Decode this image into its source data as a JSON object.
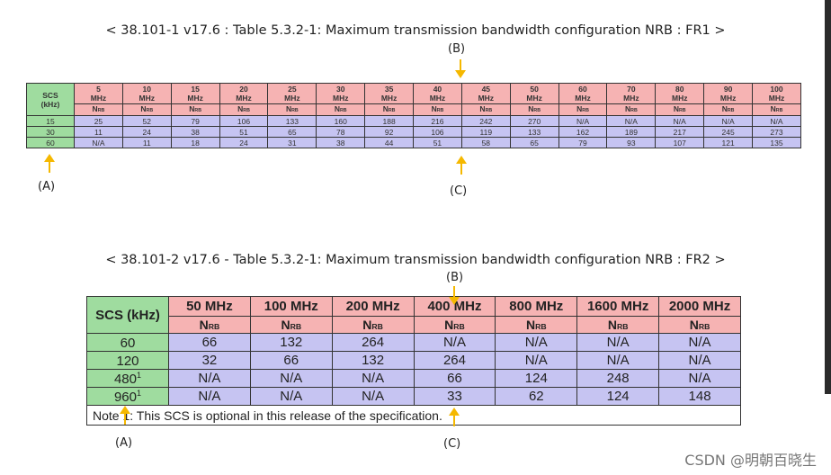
{
  "fr1": {
    "caption": "< 38.101-1 v17.6 : Table 5.3.2-1: Maximum transmission bandwidth configuration NRB : FR1 >",
    "scs_header": [
      "SCS",
      "(kHz)"
    ],
    "bandwidths": [
      "5",
      "10",
      "15",
      "20",
      "25",
      "30",
      "35",
      "40",
      "45",
      "50",
      "60",
      "70",
      "80",
      "90",
      "100"
    ],
    "mhz_label": "MHz",
    "nrb_label": {
      "n": "N",
      "rb": "RB"
    },
    "rows": [
      {
        "scs": "15",
        "values": [
          "25",
          "52",
          "79",
          "106",
          "133",
          "160",
          "188",
          "216",
          "242",
          "270",
          "N/A",
          "N/A",
          "N/A",
          "N/A",
          "N/A"
        ]
      },
      {
        "scs": "30",
        "values": [
          "11",
          "24",
          "38",
          "51",
          "65",
          "78",
          "92",
          "106",
          "119",
          "133",
          "162",
          "189",
          "217",
          "245",
          "273"
        ]
      },
      {
        "scs": "60",
        "values": [
          "N/A",
          "11",
          "18",
          "24",
          "31",
          "38",
          "44",
          "51",
          "58",
          "65",
          "79",
          "93",
          "107",
          "121",
          "135"
        ]
      }
    ],
    "markers": {
      "a": "(A)",
      "b": "(B)",
      "c": "(C)"
    }
  },
  "fr2": {
    "caption": "< 38.101-2 v17.6 - Table 5.3.2-1: Maximum transmission bandwidth configuration NRB : FR2 >",
    "scs_header": "SCS (kHz)",
    "bandwidths": [
      "50 MHz",
      "100 MHz",
      "200 MHz",
      "400 MHz",
      "800 MHz",
      "1600 MHz",
      "2000 MHz"
    ],
    "nrb_label": {
      "n": "N",
      "rb": "RB"
    },
    "rows": [
      {
        "scs": "60",
        "sup": "",
        "values": [
          "66",
          "132",
          "264",
          "N/A",
          "N/A",
          "N/A",
          "N/A"
        ]
      },
      {
        "scs": "120",
        "sup": "",
        "values": [
          "32",
          "66",
          "132",
          "264",
          "N/A",
          "N/A",
          "N/A"
        ]
      },
      {
        "scs": "480",
        "sup": "1",
        "values": [
          "N/A",
          "N/A",
          "N/A",
          "66",
          "124",
          "248",
          "N/A"
        ]
      },
      {
        "scs": "960",
        "sup": "1",
        "values": [
          "N/A",
          "N/A",
          "N/A",
          "33",
          "62",
          "124",
          "148"
        ]
      }
    ],
    "note": "Note 1: This SCS is optional in this release of the specification.",
    "markers": {
      "a": "(A)",
      "b": "(B)",
      "c": "(C)"
    }
  },
  "watermark": "CSDN @明朝百晓生",
  "colors": {
    "scs_green": "#9fdc9f",
    "header_pink": "#f6b3b3",
    "value_lavender": "#c6c4f2",
    "arrow_amber": "#f5b800"
  }
}
